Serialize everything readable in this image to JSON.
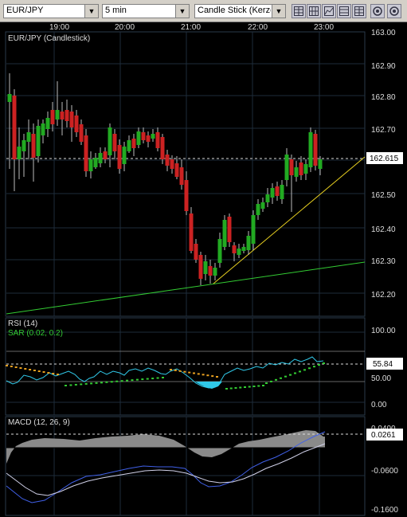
{
  "toolbar": {
    "symbol": "EUR/JPY",
    "interval": "5 min",
    "chart_type": "Candle Stick (Kerze",
    "buttons": [
      "grid-icon",
      "grid-icon",
      "chart-toggle-icon",
      "grid-icon",
      "grid-icon",
      "zoom-icon",
      "settings-icon"
    ]
  },
  "chart": {
    "time_labels": [
      "19:00",
      "20:00",
      "21:00",
      "22:00",
      "23:00"
    ],
    "price_pane_title": "EUR/JPY (Candlestick)",
    "price_ticks": [
      "163.00",
      "162.90",
      "162.80",
      "162.70",
      "162.60",
      "162.50",
      "162.40",
      "162.30",
      "162.20"
    ],
    "current_price": "162.615",
    "rsi_title": "RSI (14)",
    "sar_title": "SAR (0.02, 0.2)",
    "rsi_ticks": [
      "100.00",
      "50.00",
      "0.00"
    ],
    "rsi_current": "55.84",
    "macd_title": "MACD (12, 26, 9)",
    "macd_ticks": [
      "0.0400",
      "-0.0600",
      "-0.1600"
    ],
    "macd_current": "0.0261",
    "colors": {
      "up": "#22aa22",
      "down": "#cc2222",
      "trendline": "#e8d020",
      "support": "#33cc33",
      "rsi_line": "#30c8e8",
      "sar_dot": "#33cc33",
      "sar_dot_alt": "#e8a020",
      "grid": "#1e2c3a",
      "bg": "#000000"
    }
  }
}
